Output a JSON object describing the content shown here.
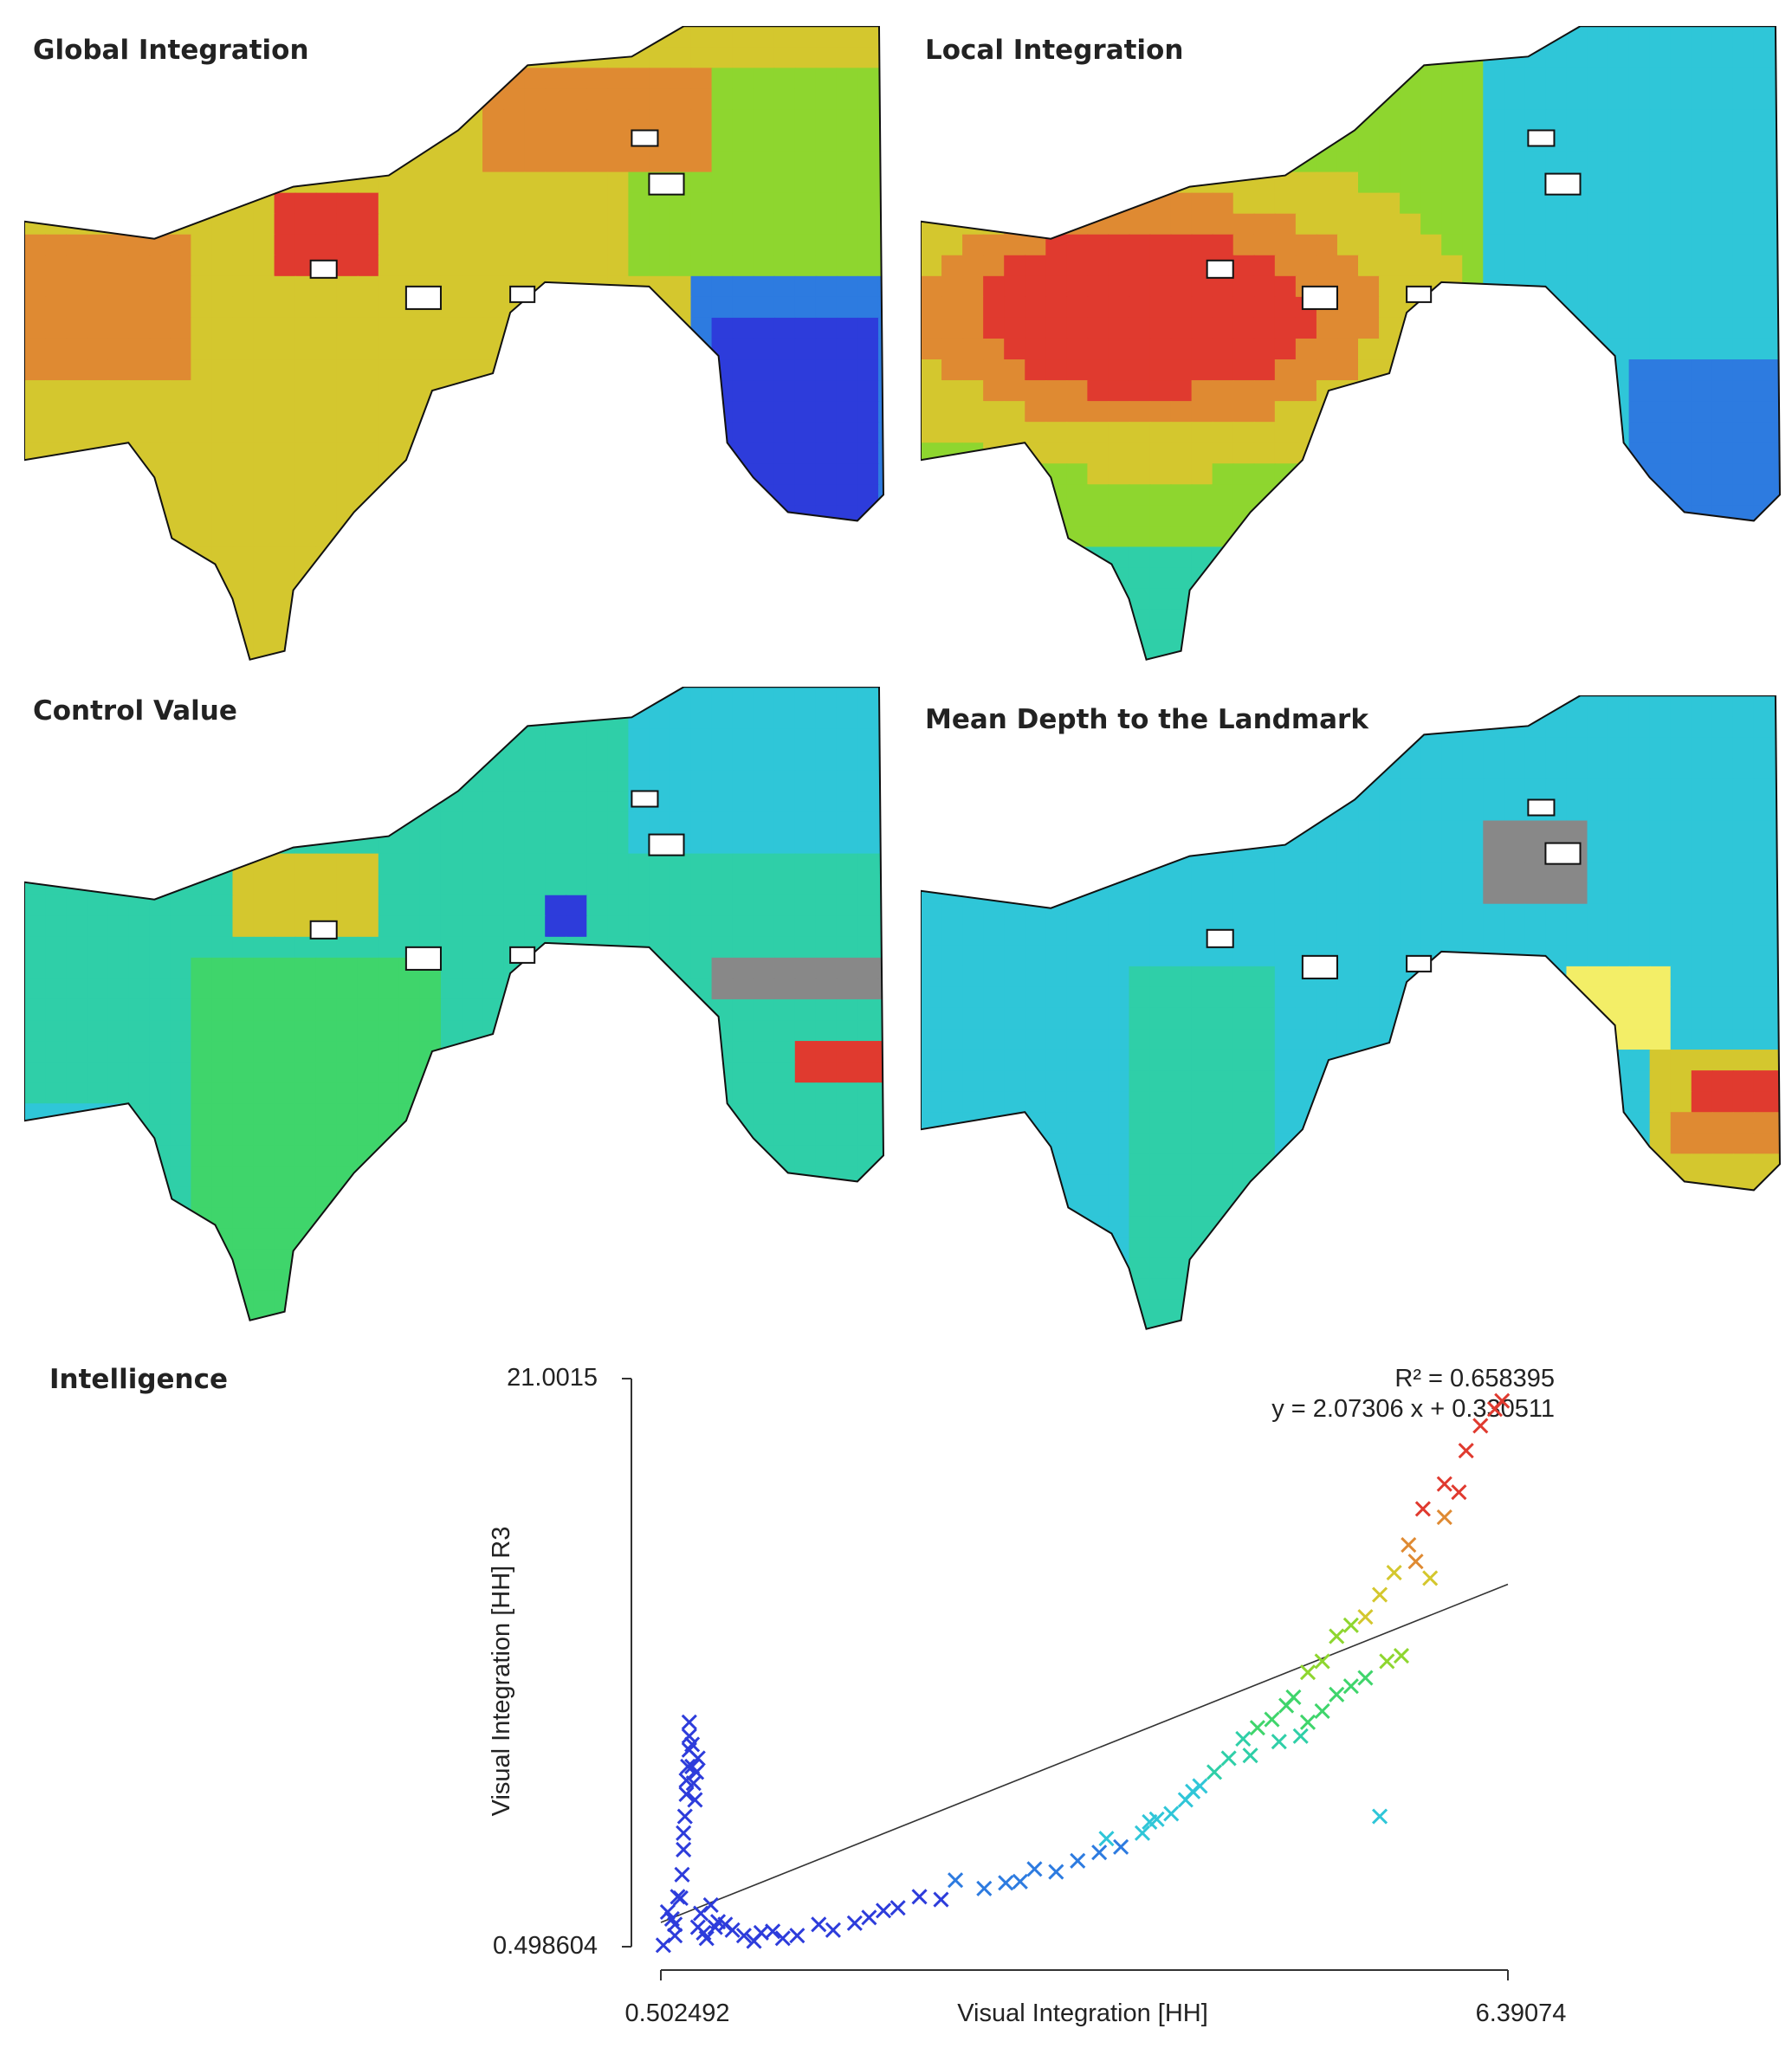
{
  "panels": [
    {
      "title": "Global Integration",
      "palette": "global"
    },
    {
      "title": "Local Integration",
      "palette": "local"
    },
    {
      "title": "Control Value",
      "palette": "control"
    },
    {
      "title": "Mean Depth to the Landmark",
      "palette": "depth"
    }
  ],
  "intelligence_title": "Intelligence",
  "colors": {
    "red": "#e03a2f",
    "orange": "#df8a32",
    "yellow": "#d4c72e",
    "lime": "#8ed62f",
    "green": "#3fd56b",
    "teal": "#2fcfa8",
    "cyan": "#2fc6d8",
    "blue": "#2d7be0",
    "deepblue": "#2d3cdb",
    "gray": "#888888",
    "paleyellow": "#f3ee67"
  },
  "chart_data": {
    "type": "scatter",
    "title": "",
    "xlabel": "Visual Integration [HH]",
    "ylabel": "Visual Integration [HH] R3",
    "xlim": [
      0.502492,
      6.39074
    ],
    "ylim": [
      0.498604,
      21.0015
    ],
    "x_tick_labels": [
      "0.502492",
      "6.39074"
    ],
    "y_tick_labels": [
      "0.498604",
      "21.0015"
    ],
    "r2_label": "R² = 0.658395",
    "equation_label": "y = 2.07306 x + 0.330511",
    "regression": {
      "slope": 2.07306,
      "intercept": 0.330511
    },
    "marker": "x",
    "points": [
      [
        0.52,
        0.55
      ],
      [
        0.55,
        1.75
      ],
      [
        0.58,
        1.5
      ],
      [
        0.6,
        0.9
      ],
      [
        0.6,
        1.3
      ],
      [
        0.62,
        2.3
      ],
      [
        0.64,
        2.25
      ],
      [
        0.65,
        3.1
      ],
      [
        0.66,
        4.0
      ],
      [
        0.66,
        4.6
      ],
      [
        0.67,
        5.2
      ],
      [
        0.68,
        6.0
      ],
      [
        0.68,
        6.5
      ],
      [
        0.69,
        7.0
      ],
      [
        0.7,
        7.6
      ],
      [
        0.7,
        8.1
      ],
      [
        0.7,
        8.6
      ],
      [
        0.72,
        7.8
      ],
      [
        0.72,
        7.0
      ],
      [
        0.73,
        6.4
      ],
      [
        0.74,
        5.8
      ],
      [
        0.75,
        6.8
      ],
      [
        0.76,
        7.3
      ],
      [
        0.76,
        1.2
      ],
      [
        0.78,
        1.7
      ],
      [
        0.8,
        1.0
      ],
      [
        0.82,
        0.8
      ],
      [
        0.85,
        2.0
      ],
      [
        0.88,
        1.2
      ],
      [
        0.9,
        1.4
      ],
      [
        0.95,
        1.3
      ],
      [
        1.0,
        1.1
      ],
      [
        1.08,
        0.9
      ],
      [
        1.15,
        0.7
      ],
      [
        1.2,
        1.0
      ],
      [
        1.28,
        1.05
      ],
      [
        1.35,
        0.8
      ],
      [
        1.45,
        0.9
      ],
      [
        1.6,
        1.3
      ],
      [
        1.7,
        1.1
      ],
      [
        1.85,
        1.35
      ],
      [
        1.95,
        1.55
      ],
      [
        2.05,
        1.8
      ],
      [
        2.15,
        1.9
      ],
      [
        2.3,
        2.3
      ],
      [
        2.45,
        2.2
      ],
      [
        2.55,
        2.9
      ],
      [
        2.75,
        2.6
      ],
      [
        2.9,
        2.8
      ],
      [
        3.0,
        2.85
      ],
      [
        3.1,
        3.3
      ],
      [
        3.25,
        3.2
      ],
      [
        3.4,
        3.6
      ],
      [
        3.55,
        3.9
      ],
      [
        3.6,
        4.4
      ],
      [
        3.7,
        4.1
      ],
      [
        3.85,
        4.6
      ],
      [
        3.95,
        5.1
      ],
      [
        4.05,
        5.3
      ],
      [
        4.15,
        5.8
      ],
      [
        4.25,
        6.3
      ],
      [
        4.35,
        6.8
      ],
      [
        4.45,
        7.3
      ],
      [
        4.55,
        8.0
      ],
      [
        4.65,
        8.4
      ],
      [
        4.75,
        8.7
      ],
      [
        4.85,
        9.2
      ],
      [
        4.9,
        9.5
      ],
      [
        5.0,
        10.4
      ],
      [
        5.1,
        10.8
      ],
      [
        5.2,
        11.7
      ],
      [
        5.3,
        12.1
      ],
      [
        5.4,
        12.4
      ],
      [
        5.5,
        13.2
      ],
      [
        5.6,
        14.0
      ],
      [
        5.7,
        15.0
      ],
      [
        5.8,
        16.3
      ],
      [
        5.95,
        17.2
      ],
      [
        6.1,
        18.4
      ],
      [
        6.2,
        19.3
      ],
      [
        6.3,
        19.9
      ],
      [
        6.35,
        20.2
      ],
      [
        5.0,
        8.6
      ],
      [
        5.1,
        9.0
      ],
      [
        5.2,
        9.6
      ],
      [
        5.3,
        9.9
      ],
      [
        5.4,
        10.2
      ],
      [
        5.55,
        10.8
      ],
      [
        5.65,
        11.0
      ],
      [
        5.5,
        5.2
      ],
      [
        4.6,
        7.4
      ],
      [
        4.8,
        7.9
      ],
      [
        4.95,
        8.1
      ],
      [
        3.9,
        5.0
      ],
      [
        4.2,
        6.1
      ],
      [
        5.95,
        16.0
      ],
      [
        6.05,
        16.9
      ],
      [
        5.75,
        14.4
      ],
      [
        5.85,
        13.8
      ]
    ]
  }
}
